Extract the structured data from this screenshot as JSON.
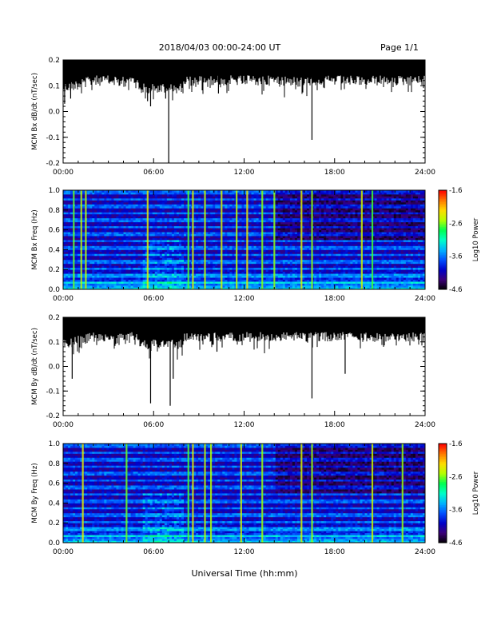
{
  "header": {
    "title": "2018/04/03  00:00-24:00 UT",
    "page": "Page 1/1"
  },
  "xlabel": "Universal Time (hh:mm)",
  "colors": {
    "trace": "#000000",
    "colormap": [
      "#000000",
      "#3c0078",
      "#0000c8",
      "#0050ff",
      "#00b4ff",
      "#00ffc8",
      "#00ff50",
      "#b4ff00",
      "#ffdc00",
      "#ff7800",
      "#ff0000"
    ]
  },
  "chart_data": [
    {
      "type": "line",
      "ylabel": "MCM Bx dB/dt (nT/sec)",
      "x_unit": "hours UT",
      "xlim": [
        0,
        24
      ],
      "ylim": [
        -0.2,
        0.2
      ],
      "xticks": [
        "00:00",
        "06:00",
        "12:00",
        "18:00",
        "24:00"
      ],
      "yticks": [
        "-0.2",
        "-0.1",
        "0.0",
        "0.1",
        "0.2"
      ],
      "baseline": 0.16,
      "spikes": [
        {
          "x": 0.1,
          "y": 0.03
        },
        {
          "x": 0.5,
          "y": 0.05
        },
        {
          "x": 5.6,
          "y": 0.04
        },
        {
          "x": 5.8,
          "y": 0.02
        },
        {
          "x": 6.8,
          "y": 0.05
        },
        {
          "x": 7.0,
          "y": -0.21
        },
        {
          "x": 10.3,
          "y": 0.07
        },
        {
          "x": 16.5,
          "y": -0.11
        }
      ]
    },
    {
      "type": "heatmap",
      "ylabel": "MCM Bx Freq (Hz)",
      "colorbar_label": "Log10 Power",
      "xlim": [
        0,
        24
      ],
      "ylim": [
        0,
        1.0
      ],
      "zlim": [
        -4.6,
        -1.6
      ],
      "xticks": [
        "00:00",
        "06:00",
        "12:00",
        "18:00",
        "24:00"
      ],
      "yticks": [
        "0.0",
        "0.2",
        "0.4",
        "0.6",
        "0.8",
        "1.0"
      ],
      "cbticks": [
        "-1.6",
        "-2.6",
        "-3.6",
        "-4.6"
      ],
      "harmonic_bands_hz": [
        0.07,
        0.14,
        0.21,
        0.28,
        0.35,
        0.42,
        0.49,
        0.56,
        0.63,
        0.7,
        0.77,
        0.84,
        0.91,
        0.98
      ],
      "vertical_events_hours": [
        0.7,
        1.2,
        1.5,
        5.6,
        8.3,
        8.6,
        9.4,
        10.5,
        11.5,
        12.2,
        13.2,
        14.0,
        15.8,
        16.5,
        19.8,
        20.5
      ]
    },
    {
      "type": "line",
      "ylabel": "MCM By dB/dt (nT/sec)",
      "x_unit": "hours UT",
      "xlim": [
        0,
        24
      ],
      "ylim": [
        -0.2,
        0.2
      ],
      "xticks": [
        "00:00",
        "06:00",
        "12:00",
        "18:00",
        "24:00"
      ],
      "yticks": [
        "-0.2",
        "-0.1",
        "0.0",
        "0.1",
        "0.2"
      ],
      "baseline": 0.16,
      "spikes": [
        {
          "x": 0.6,
          "y": -0.05
        },
        {
          "x": 5.8,
          "y": -0.15
        },
        {
          "x": 7.1,
          "y": -0.16
        },
        {
          "x": 7.3,
          "y": -0.05
        },
        {
          "x": 10.2,
          "y": 0.06
        },
        {
          "x": 16.5,
          "y": -0.13
        },
        {
          "x": 18.7,
          "y": -0.03
        }
      ]
    },
    {
      "type": "heatmap",
      "ylabel": "MCM By Freq (Hz)",
      "colorbar_label": "Log10 Power",
      "xlim": [
        0,
        24
      ],
      "ylim": [
        0,
        1.0
      ],
      "zlim": [
        -4.6,
        -1.6
      ],
      "xticks": [
        "00:00",
        "06:00",
        "12:00",
        "18:00",
        "24:00"
      ],
      "yticks": [
        "0.0",
        "0.2",
        "0.4",
        "0.6",
        "0.8",
        "1.0"
      ],
      "cbticks": [
        "-1.6",
        "-2.6",
        "-3.6",
        "-4.6"
      ],
      "harmonic_bands_hz": [
        0.07,
        0.14,
        0.21,
        0.28,
        0.35,
        0.42,
        0.49,
        0.56,
        0.63,
        0.7,
        0.77,
        0.84,
        0.91,
        0.98
      ],
      "vertical_events_hours": [
        1.3,
        4.2,
        8.3,
        8.6,
        9.4,
        9.8,
        11.8,
        13.2,
        15.8,
        16.5,
        20.5,
        22.5
      ]
    }
  ]
}
